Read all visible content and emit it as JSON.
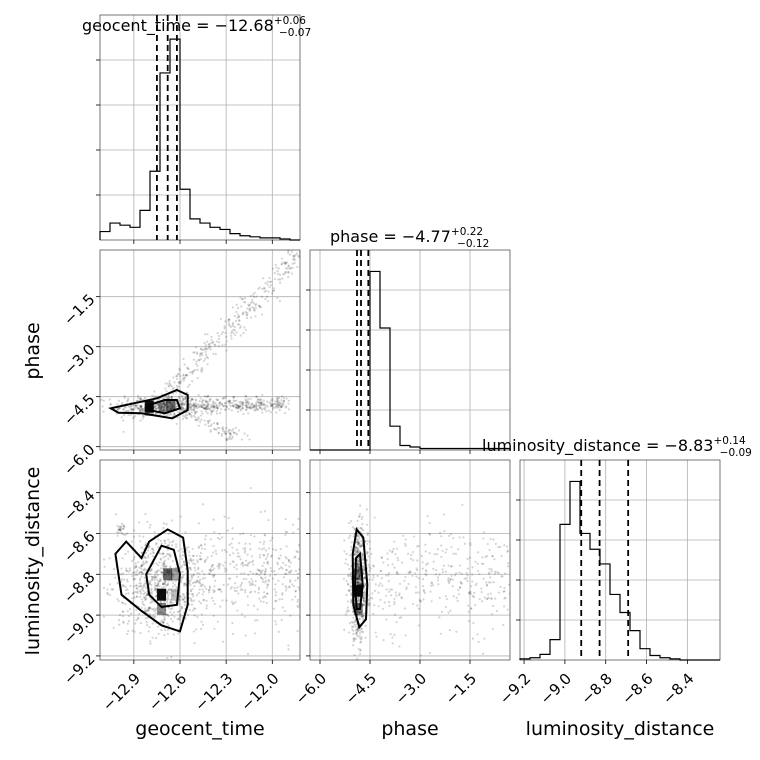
{
  "chart_data": {
    "type": "scatter",
    "subtype": "corner plot",
    "grid": true,
    "parameters": [
      {
        "name": "geocent_time",
        "axis_label": "geocent_time",
        "title_prefix": "geocent_time = ",
        "median": "−12.68",
        "plus": "+0.06",
        "minus": "−0.07",
        "range": [
          -13.12,
          -11.82
        ],
        "ticks": [
          {
            "value": -12.9,
            "label": "−12.9"
          },
          {
            "value": -12.6,
            "label": "−12.6"
          },
          {
            "value": -12.3,
            "label": "−12.3"
          },
          {
            "value": -12.0,
            "label": "−12.0"
          }
        ],
        "quantiles": [
          -12.75,
          -12.68,
          -12.62
        ],
        "hist_edges_start": -13.12,
        "hist_bin_width": 0.065,
        "hist_counts": [
          8,
          16,
          14,
          12,
          28,
          65,
          158,
          190,
          48,
          20,
          16,
          12,
          10,
          6,
          4,
          3,
          2,
          2,
          1,
          0
        ]
      },
      {
        "name": "phase",
        "axis_label": "phase",
        "title_prefix": "phase = ",
        "median": "−4.77",
        "plus": "+0.22",
        "minus": "−0.12",
        "range": [
          -6.3,
          -0.3
        ],
        "ticks": [
          {
            "value": -6.0,
            "label": "−6.0"
          },
          {
            "value": -4.5,
            "label": "−4.5"
          },
          {
            "value": -3.0,
            "label": "−3.0"
          },
          {
            "value": -1.5,
            "label": "−1.5"
          }
        ],
        "quantiles": [
          -4.89,
          -4.77,
          -4.55
        ],
        "hist_edges_start": -6.3,
        "hist_bin_width": 0.3,
        "hist_counts": [
          0,
          0,
          0,
          0,
          0,
          0,
          120,
          82,
          16,
          3,
          2,
          1,
          1,
          1,
          1,
          1,
          1,
          1,
          1,
          1
        ]
      },
      {
        "name": "luminosity_distance",
        "axis_label": "luminosity_distance",
        "title_prefix": "luminosity_distance = ",
        "median": "−8.83",
        "plus": "+0.14",
        "minus": "−0.09",
        "range": [
          -9.22,
          -8.24
        ],
        "ticks": [
          {
            "value": -9.2,
            "label": "−9.2"
          },
          {
            "value": -9.0,
            "label": "−9.0"
          },
          {
            "value": -8.8,
            "label": "−8.8"
          },
          {
            "value": -8.6,
            "label": "−8.6"
          },
          {
            "value": -8.4,
            "label": "−8.4"
          }
        ],
        "quantiles": [
          -8.92,
          -8.83,
          -8.69
        ],
        "hist_edges_start": -9.22,
        "hist_bin_width": 0.049,
        "hist_counts": [
          1,
          2,
          5,
          18,
          120,
          158,
          112,
          98,
          85,
          58,
          42,
          26,
          10,
          4,
          2,
          1,
          0,
          0,
          0,
          0
        ]
      }
    ],
    "phase_axis": {
      "y_range": [
        -6.1,
        -0.1
      ],
      "y_ticks": [
        {
          "value": -6.0,
          "label": "−6.0"
        },
        {
          "value": -4.5,
          "label": "−4.5"
        },
        {
          "value": -3.0,
          "label": "−3.0"
        },
        {
          "value": -1.5,
          "label": "−1.5"
        }
      ]
    },
    "lumdist_axis": {
      "y_range": [
        -9.22,
        -8.24
      ],
      "y_ticks": [
        {
          "value": -9.2,
          "label": "−9.2"
        },
        {
          "value": -9.0,
          "label": "−9.0"
        },
        {
          "value": -8.8,
          "label": "−8.8"
        },
        {
          "value": -8.6,
          "label": "−8.6"
        },
        {
          "value": -8.4,
          "label": "−8.4"
        }
      ]
    },
    "contours": {
      "time_phase": [
        [
          [
            -13.05,
            -4.85
          ],
          [
            -12.9,
            -4.7
          ],
          [
            -12.75,
            -4.55
          ],
          [
            -12.62,
            -4.3
          ],
          [
            -12.55,
            -4.45
          ],
          [
            -12.55,
            -4.9
          ],
          [
            -12.65,
            -5.15
          ],
          [
            -12.85,
            -5.0
          ],
          [
            -13.0,
            -4.98
          ]
        ],
        [
          [
            -12.8,
            -4.75
          ],
          [
            -12.7,
            -4.6
          ],
          [
            -12.62,
            -4.6
          ],
          [
            -12.6,
            -4.85
          ],
          [
            -12.7,
            -5.0
          ],
          [
            -12.8,
            -4.9
          ]
        ]
      ],
      "time_dist": [
        [
          [
            -13.02,
            -8.7
          ],
          [
            -12.95,
            -8.64
          ],
          [
            -12.85,
            -8.72
          ],
          [
            -12.8,
            -8.64
          ],
          [
            -12.68,
            -8.58
          ],
          [
            -12.58,
            -8.62
          ],
          [
            -12.55,
            -8.78
          ],
          [
            -12.55,
            -8.95
          ],
          [
            -12.6,
            -9.08
          ],
          [
            -12.72,
            -9.05
          ],
          [
            -12.85,
            -8.98
          ],
          [
            -12.98,
            -8.9
          ]
        ],
        [
          [
            -12.82,
            -8.8
          ],
          [
            -12.72,
            -8.66
          ],
          [
            -12.64,
            -8.68
          ],
          [
            -12.6,
            -8.8
          ],
          [
            -12.62,
            -8.95
          ],
          [
            -12.72,
            -8.96
          ],
          [
            -12.8,
            -8.9
          ]
        ]
      ],
      "phase_dist": [
        [
          [
            -5.0,
            -8.95
          ],
          [
            -5.02,
            -8.7
          ],
          [
            -4.9,
            -8.58
          ],
          [
            -4.7,
            -8.62
          ],
          [
            -4.58,
            -8.85
          ],
          [
            -4.62,
            -9.02
          ],
          [
            -4.82,
            -9.06
          ]
        ],
        [
          [
            -4.95,
            -8.85
          ],
          [
            -4.92,
            -8.72
          ],
          [
            -4.8,
            -8.7
          ],
          [
            -4.72,
            -8.85
          ],
          [
            -4.8,
            -8.97
          ],
          [
            -4.9,
            -8.97
          ]
        ]
      ]
    },
    "density_cells": {
      "time_phase": [
        [
          -12.8,
          -4.8,
          0.95
        ],
        [
          -12.71,
          -4.8,
          0.4
        ],
        [
          -12.66,
          -4.75,
          0.55
        ],
        [
          -12.8,
          -4.9,
          0.3
        ]
      ],
      "time_dist": [
        [
          -12.72,
          -8.9,
          0.95
        ],
        [
          -12.72,
          -8.97,
          0.45
        ],
        [
          -12.68,
          -8.8,
          0.6
        ],
        [
          -12.63,
          -8.8,
          0.35
        ],
        [
          -12.63,
          -8.9,
          0.25
        ]
      ],
      "phase_dist": [
        [
          -4.85,
          -8.88,
          0.95
        ],
        [
          -4.85,
          -8.8,
          0.45
        ],
        [
          -4.85,
          -8.97,
          0.45
        ]
      ]
    }
  }
}
